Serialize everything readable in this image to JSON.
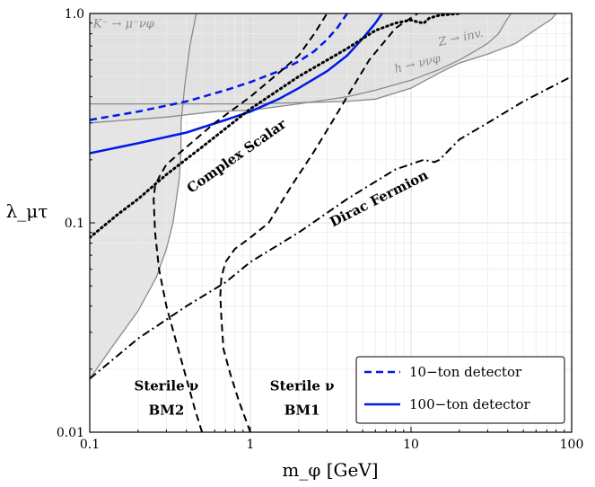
{
  "chart_data": {
    "type": "line",
    "title": "",
    "xlabel": "m_φ [GeV]",
    "ylabel": "λ_μτ",
    "xscale": "log",
    "yscale": "log",
    "xlim": [
      0.1,
      100
    ],
    "ylim": [
      0.01,
      1.0
    ],
    "grid": true,
    "legend_position": "bottom-right",
    "x_ticks": [
      {
        "value": 0.1,
        "label": "0.1"
      },
      {
        "value": 1,
        "label": "1"
      },
      {
        "value": 10,
        "label": "10"
      },
      {
        "value": 100,
        "label": "100"
      }
    ],
    "y_ticks": [
      {
        "value": 0.01,
        "label": "0.01"
      },
      {
        "value": 0.1,
        "label": "0.1"
      },
      {
        "value": 1.0,
        "label": "1.0"
      }
    ],
    "excluded_regions": [
      {
        "name": "kaon",
        "label": "K⁻ → μ⁻νφ",
        "color": "#e0e0e0",
        "points": [
          [
            0.1,
            0.018
          ],
          [
            0.14,
            0.026
          ],
          [
            0.2,
            0.038
          ],
          [
            0.26,
            0.055
          ],
          [
            0.3,
            0.075
          ],
          [
            0.33,
            0.1
          ],
          [
            0.36,
            0.16
          ],
          [
            0.37,
            0.22
          ],
          [
            0.37,
            0.3
          ],
          [
            0.39,
            0.45
          ],
          [
            0.42,
            0.7
          ],
          [
            0.46,
            1.0
          ],
          [
            0.1,
            1.0
          ]
        ]
      },
      {
        "name": "z-invisible",
        "label": "Z → inv.",
        "color": "#e0e0e0",
        "points": [
          [
            0.1,
            0.37
          ],
          [
            0.3,
            0.37
          ],
          [
            0.6,
            0.37
          ],
          [
            1,
            0.37
          ],
          [
            2,
            0.375
          ],
          [
            4,
            0.38
          ],
          [
            6,
            0.39
          ],
          [
            10,
            0.44
          ],
          [
            15,
            0.52
          ],
          [
            20,
            0.58
          ],
          [
            30,
            0.64
          ],
          [
            45,
            0.72
          ],
          [
            60,
            0.84
          ],
          [
            75,
            0.94
          ],
          [
            80,
            1.0
          ],
          [
            0.1,
            1.0
          ]
        ]
      },
      {
        "name": "higgs",
        "label": "h → ννφ",
        "color": "#e0e0e0",
        "points": [
          [
            0.1,
            0.3
          ],
          [
            0.3,
            0.32
          ],
          [
            0.6,
            0.34
          ],
          [
            1,
            0.345
          ],
          [
            2,
            0.37
          ],
          [
            4,
            0.4
          ],
          [
            6,
            0.43
          ],
          [
            10,
            0.48
          ],
          [
            15,
            0.54
          ],
          [
            20,
            0.6
          ],
          [
            25,
            0.66
          ],
          [
            30,
            0.72
          ],
          [
            35,
            0.8
          ],
          [
            40,
            0.95
          ],
          [
            42,
            1.0
          ],
          [
            0.1,
            1.0
          ]
        ]
      }
    ],
    "series": [
      {
        "name": "10−ton detector",
        "color": "#0019e6",
        "style": "dashed",
        "width": 2.5,
        "points": [
          [
            0.1,
            0.31
          ],
          [
            0.2,
            0.34
          ],
          [
            0.4,
            0.38
          ],
          [
            0.7,
            0.43
          ],
          [
            1,
            0.47
          ],
          [
            1.5,
            0.53
          ],
          [
            2,
            0.59
          ],
          [
            2.5,
            0.66
          ],
          [
            3,
            0.75
          ],
          [
            3.5,
            0.86
          ],
          [
            4,
            1.0
          ]
        ]
      },
      {
        "name": "100−ton detector",
        "color": "#0019e6",
        "style": "solid",
        "width": 2.5,
        "points": [
          [
            0.1,
            0.215
          ],
          [
            0.2,
            0.24
          ],
          [
            0.4,
            0.27
          ],
          [
            0.7,
            0.31
          ],
          [
            1,
            0.34
          ],
          [
            1.5,
            0.39
          ],
          [
            2,
            0.44
          ],
          [
            3,
            0.53
          ],
          [
            4,
            0.63
          ],
          [
            5,
            0.76
          ],
          [
            6,
            0.9
          ],
          [
            6.6,
            1.0
          ]
        ]
      },
      {
        "style": "dotted",
        "color": "#000000",
        "width": 3,
        "points": [
          [
            0.1,
            0.085
          ],
          [
            0.15,
            0.11
          ],
          [
            0.2,
            0.13
          ],
          [
            0.3,
            0.17
          ],
          [
            0.5,
            0.23
          ],
          [
            1,
            0.35
          ],
          [
            2,
            0.5
          ],
          [
            4,
            0.68
          ],
          [
            6,
            0.83
          ],
          [
            8,
            0.9
          ],
          [
            10,
            0.93
          ],
          [
            11,
            0.91
          ],
          [
            12,
            0.9
          ],
          [
            13,
            0.95
          ],
          [
            15,
            0.98
          ],
          [
            20,
            1.0
          ]
        ]
      },
      {
        "style": "dashdot",
        "color": "#000000",
        "width": 2,
        "points": [
          [
            0.1,
            0.018
          ],
          [
            0.2,
            0.028
          ],
          [
            0.4,
            0.04
          ],
          [
            0.7,
            0.052
          ],
          [
            1,
            0.065
          ],
          [
            2,
            0.09
          ],
          [
            4,
            0.13
          ],
          [
            8,
            0.18
          ],
          [
            12,
            0.2
          ],
          [
            14,
            0.195
          ],
          [
            15,
            0.2
          ],
          [
            20,
            0.25
          ],
          [
            30,
            0.3
          ],
          [
            50,
            0.38
          ],
          [
            100,
            0.5
          ]
        ]
      },
      {
        "style": "dashed",
        "color": "#000000",
        "width": 2,
        "points": [
          [
            1.0,
            0.01
          ],
          [
            0.85,
            0.014
          ],
          [
            0.75,
            0.019
          ],
          [
            0.68,
            0.025
          ],
          [
            0.66,
            0.035
          ],
          [
            0.65,
            0.045
          ],
          [
            0.66,
            0.055
          ],
          [
            0.7,
            0.065
          ],
          [
            0.8,
            0.075
          ],
          [
            1.0,
            0.085
          ],
          [
            1.3,
            0.1
          ],
          [
            1.8,
            0.15
          ],
          [
            2.5,
            0.22
          ],
          [
            3.2,
            0.3
          ],
          [
            4,
            0.4
          ],
          [
            5.5,
            0.6
          ],
          [
            8,
            0.85
          ],
          [
            11,
            1.0
          ]
        ]
      },
      {
        "style": "dashed",
        "color": "#000000",
        "width": 2,
        "points": [
          [
            0.5,
            0.01
          ],
          [
            0.45,
            0.013
          ],
          [
            0.4,
            0.018
          ],
          [
            0.35,
            0.026
          ],
          [
            0.3,
            0.04
          ],
          [
            0.27,
            0.06
          ],
          [
            0.255,
            0.09
          ],
          [
            0.25,
            0.13
          ],
          [
            0.255,
            0.15
          ],
          [
            0.27,
            0.165
          ],
          [
            0.3,
            0.19
          ],
          [
            0.4,
            0.23
          ],
          [
            0.6,
            0.3
          ],
          [
            1,
            0.4
          ],
          [
            1.5,
            0.52
          ],
          [
            2,
            0.63
          ],
          [
            2.5,
            0.8
          ],
          [
            3,
            1.0
          ]
        ]
      }
    ],
    "annotations": [
      {
        "text": "Complex Scalar",
        "x": 0.85,
        "y": 0.2,
        "rotation": -35
      },
      {
        "text": "Dirac Fermion",
        "x": 6.5,
        "y": 0.125,
        "rotation": -27
      },
      {
        "text": "Sterile ν",
        "x": 0.3,
        "y": 0.0158,
        "rotation": 0
      },
      {
        "text": "BM2",
        "x": 0.3,
        "y": 0.0121,
        "rotation": 0
      },
      {
        "text": "Sterile ν",
        "x": 2.1,
        "y": 0.0158,
        "rotation": 0
      },
      {
        "text": "BM1",
        "x": 2.1,
        "y": 0.0121,
        "rotation": 0
      }
    ]
  }
}
